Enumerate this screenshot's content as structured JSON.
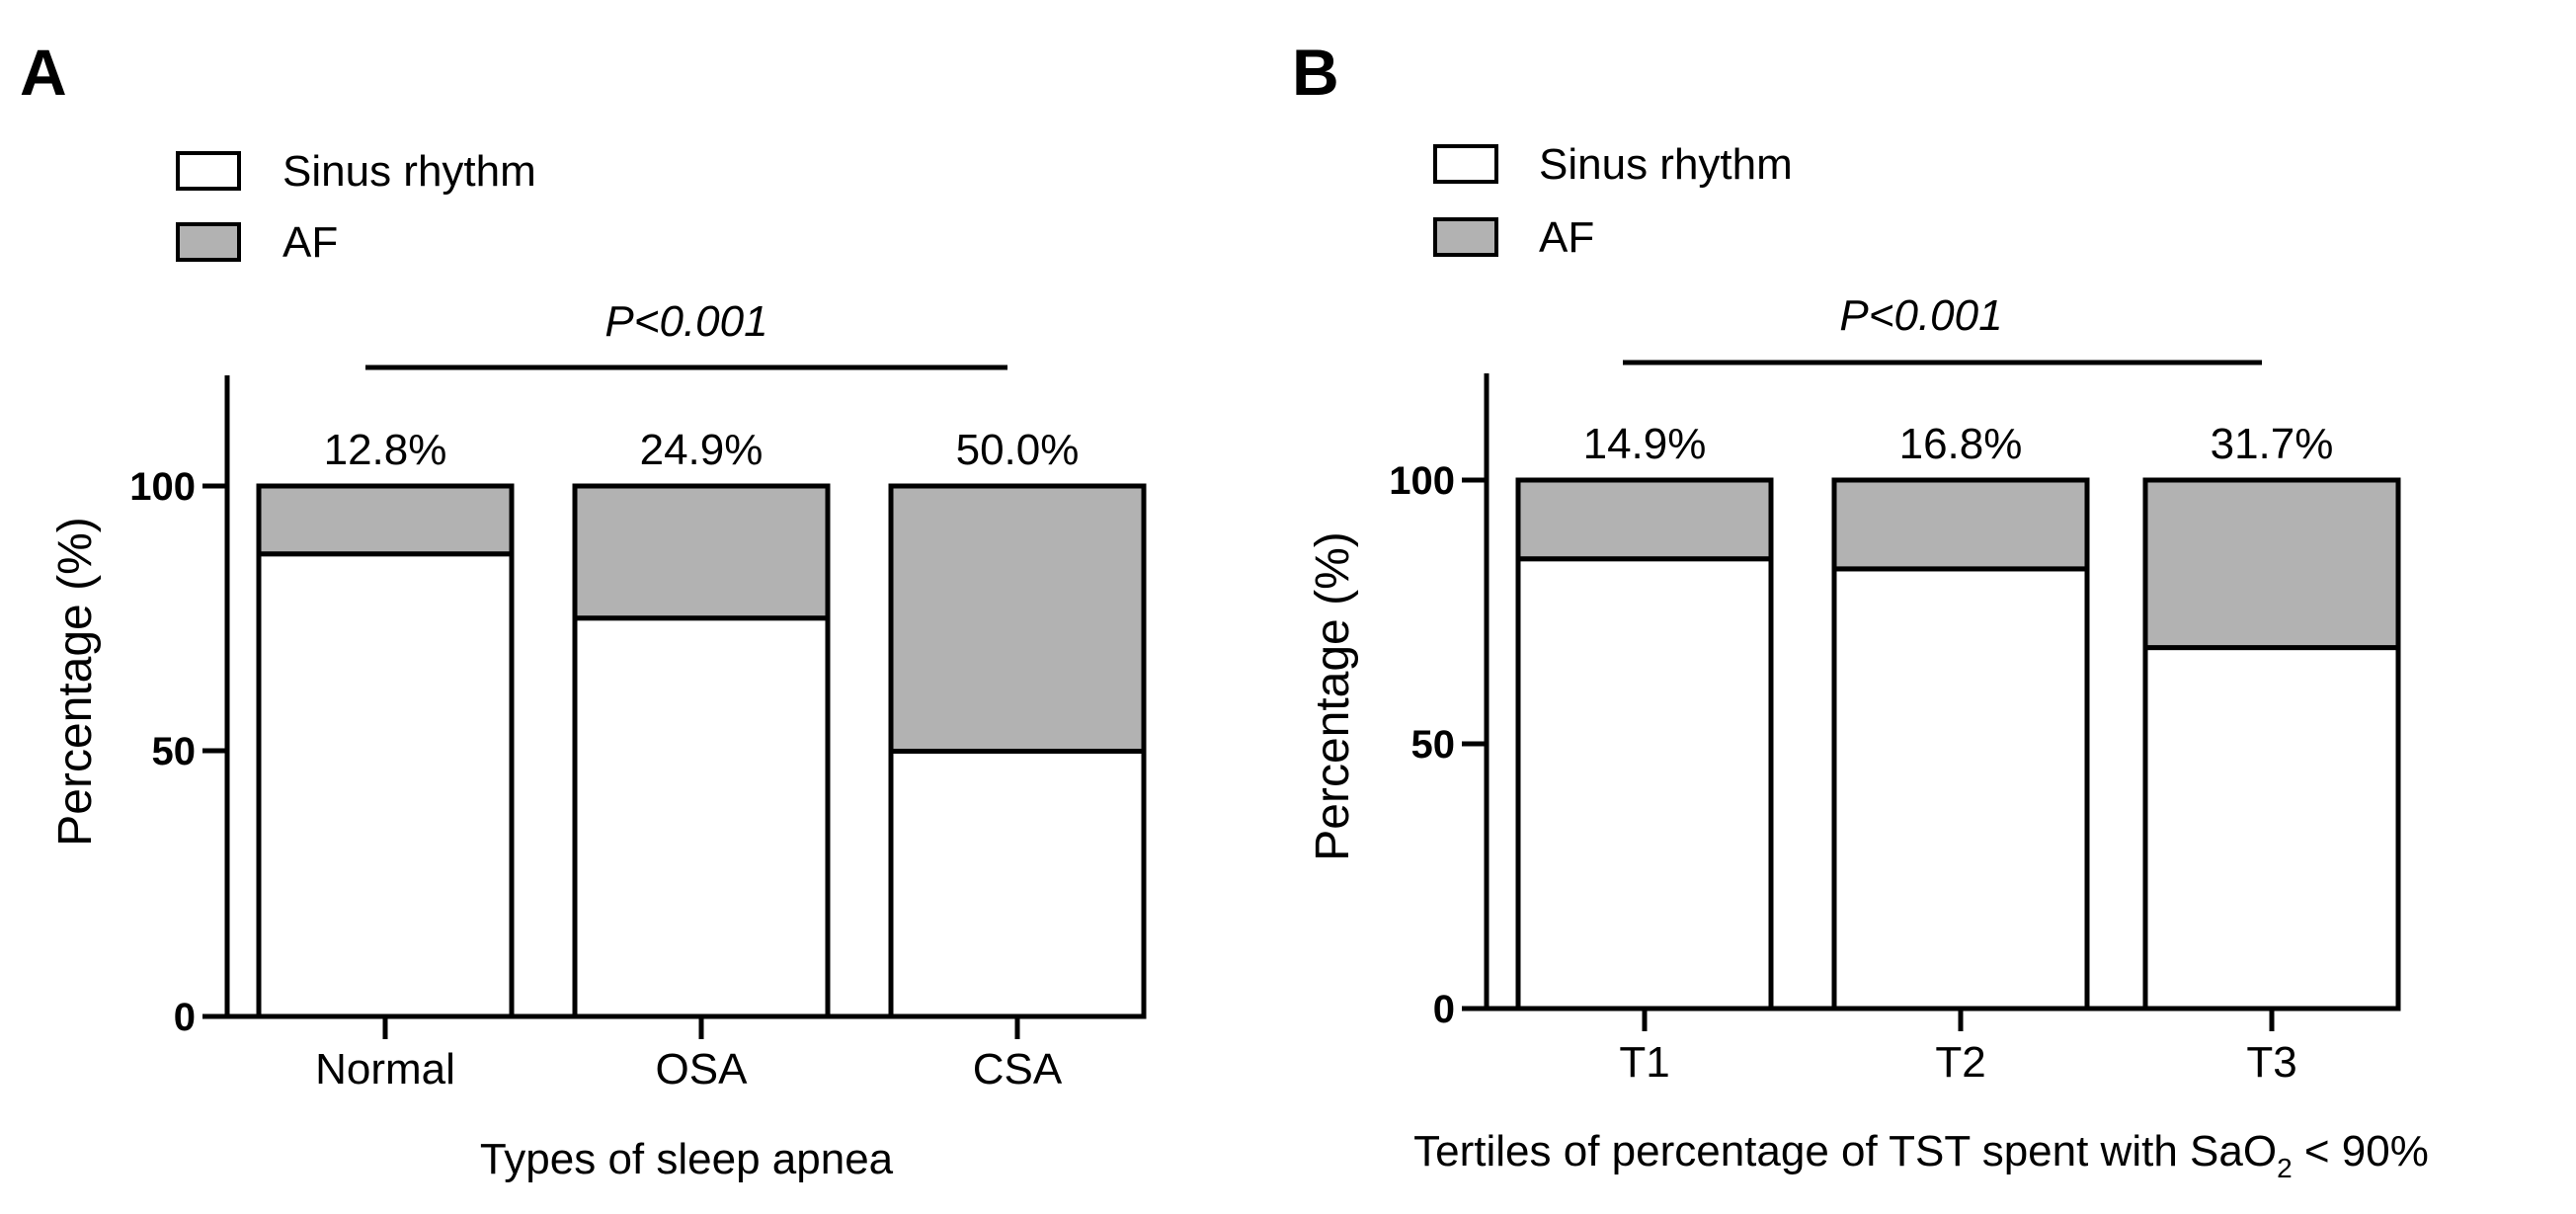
{
  "colors": {
    "sinus": "#ffffff",
    "af": "#b2b2b2",
    "stroke": "#000000"
  },
  "chart_data": [
    {
      "type": "bar",
      "stacked": true,
      "panel_label": "A",
      "categories": [
        "Normal",
        "OSA",
        "CSA"
      ],
      "series": [
        {
          "name": "Sinus rhythm",
          "values": [
            87.2,
            75.1,
            50.0
          ]
        },
        {
          "name": "AF",
          "values": [
            12.8,
            24.9,
            50.0
          ]
        }
      ],
      "data_labels": [
        "12.8%",
        "24.9%",
        "50.0%"
      ],
      "legend": [
        "Sinus rhythm",
        "AF"
      ],
      "legend_position": "top-left",
      "p_value": "P<0.001",
      "ylabel": "Percentage (%)",
      "xlabel": "Types of sleep apnea",
      "yticks": [
        0,
        50,
        100
      ],
      "ylim": [
        0,
        120
      ],
      "grid": false
    },
    {
      "type": "bar",
      "stacked": true,
      "panel_label": "B",
      "categories": [
        "T1",
        "T2",
        "T3"
      ],
      "series": [
        {
          "name": "Sinus rhythm",
          "values": [
            85.1,
            83.2,
            68.3
          ]
        },
        {
          "name": "AF",
          "values": [
            14.9,
            16.8,
            31.7
          ]
        }
      ],
      "data_labels": [
        "14.9%",
        "16.8%",
        "31.7%"
      ],
      "legend": [
        "Sinus rhythm",
        "AF"
      ],
      "legend_position": "top-left",
      "p_value": "P<0.001",
      "ylabel": "Percentage (%)",
      "xlabel": "Tertiles of percentage of TST spent with SaO2 < 90%",
      "xlabel_parts": {
        "before": "Tertiles of percentage of TST spent with SaO",
        "subscript": "2",
        "after": " < 90%"
      },
      "yticks": [
        0,
        50,
        100
      ],
      "ylim": [
        0,
        120
      ],
      "grid": false
    }
  ]
}
